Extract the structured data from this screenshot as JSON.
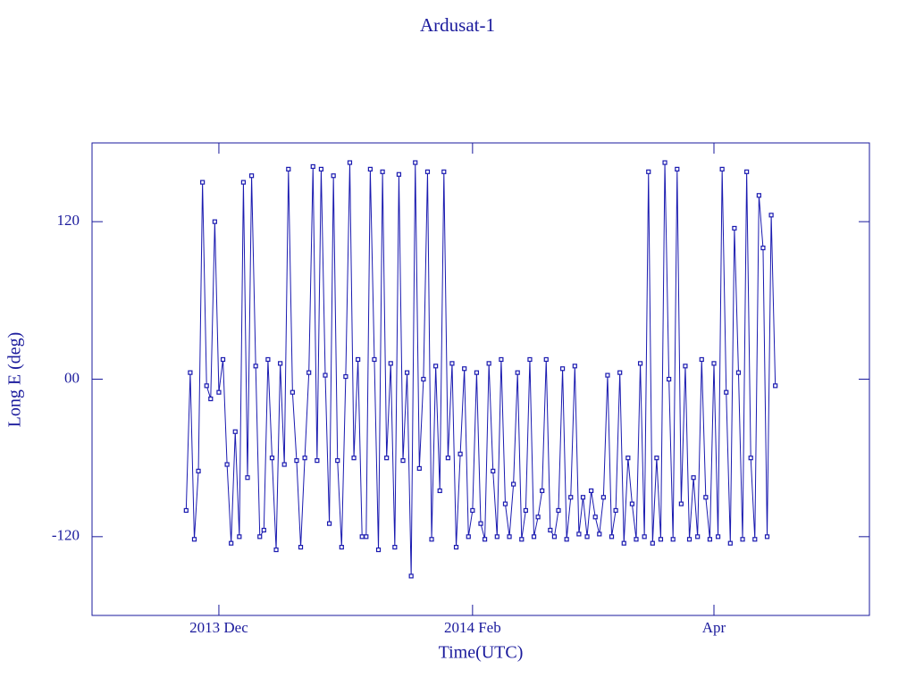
{
  "chart_data": {
    "type": "line",
    "title": "Ardusat-1",
    "x_label": "Time(UTC)",
    "y_label": "Long E (deg)",
    "x": [
      -8,
      -7,
      -6,
      -5,
      -4,
      -3,
      -2,
      -1,
      0,
      1,
      2,
      3,
      4,
      5,
      6,
      7,
      8,
      9,
      10,
      11,
      12,
      13,
      14,
      15,
      16,
      17,
      18,
      19,
      20,
      21,
      22,
      23,
      24,
      25,
      26,
      27,
      28,
      29,
      30,
      31,
      32,
      33,
      34,
      35,
      36,
      37,
      38,
      39,
      40,
      41,
      42,
      43,
      44,
      45,
      46,
      47,
      48,
      49,
      50,
      51,
      52,
      53,
      54,
      55,
      56,
      57,
      58,
      59,
      60,
      61,
      62,
      63,
      64,
      65,
      66,
      67,
      68,
      69,
      70,
      71,
      72,
      73,
      74,
      75,
      76,
      77,
      78,
      79,
      80,
      81,
      82,
      83,
      84,
      85,
      86,
      87,
      88,
      89,
      90,
      91,
      92,
      93,
      94,
      95,
      96,
      97,
      98,
      99,
      100,
      101,
      102,
      103,
      104,
      105,
      106,
      107,
      108,
      109,
      110,
      111,
      112,
      113,
      114,
      115,
      116,
      117,
      118,
      119,
      120,
      121,
      122,
      123,
      124,
      125,
      126,
      127,
      128,
      129,
      130,
      131,
      132,
      133,
      134,
      135,
      136
    ],
    "series": [
      {
        "name": "Ardusat-1",
        "color": "#1a1ab0",
        "values": [
          -100,
          5,
          -122,
          -70,
          150,
          -5,
          -15,
          120,
          -10,
          15,
          -65,
          -125,
          -40,
          -120,
          150,
          -75,
          155,
          10,
          -120,
          -115,
          15,
          -60,
          -130,
          12,
          -65,
          160,
          -10,
          -62,
          -128,
          -60,
          5,
          162,
          -62,
          160,
          3,
          -110,
          155,
          -62,
          -128,
          2,
          165,
          -60,
          15,
          -120,
          -120,
          160,
          15,
          -130,
          158,
          -60,
          12,
          -128,
          156,
          -62,
          5,
          -150,
          165,
          -68,
          0,
          158,
          -122,
          10,
          -85,
          158,
          -60,
          12,
          -128,
          -57,
          8,
          -120,
          -100,
          5,
          -110,
          -122,
          12,
          -70,
          -120,
          15,
          -95,
          -120,
          -80,
          5,
          -122,
          -100,
          15,
          -120,
          -105,
          -85,
          15,
          -115,
          -120,
          -100,
          8,
          -122,
          -90,
          10,
          -118,
          -90,
          -120,
          -85,
          -105,
          -118,
          -90,
          3,
          -120,
          -100,
          5,
          -125,
          -60,
          -95,
          -122,
          12,
          -120,
          158,
          -125,
          -60,
          -122,
          165,
          0,
          -122,
          160,
          -95,
          10,
          -122,
          -75,
          -120,
          15,
          -90,
          -122,
          12,
          -120,
          160,
          -10,
          -125,
          115,
          5,
          -122,
          158,
          -60,
          -122,
          140,
          100,
          -120,
          125,
          -5
        ]
      }
    ],
    "xlim": [
      -31,
      159
    ],
    "xticks": [
      {
        "value": 0,
        "label": "2013 Dec"
      },
      {
        "value": 62,
        "label": "2014 Feb"
      },
      {
        "value": 121,
        "label": "Apr"
      }
    ],
    "ylim": [
      -180,
      180
    ],
    "yticks": [
      {
        "value": -120,
        "label": "-120"
      },
      {
        "value": 0,
        "label": "00"
      },
      120
    ],
    "grid": false
  }
}
